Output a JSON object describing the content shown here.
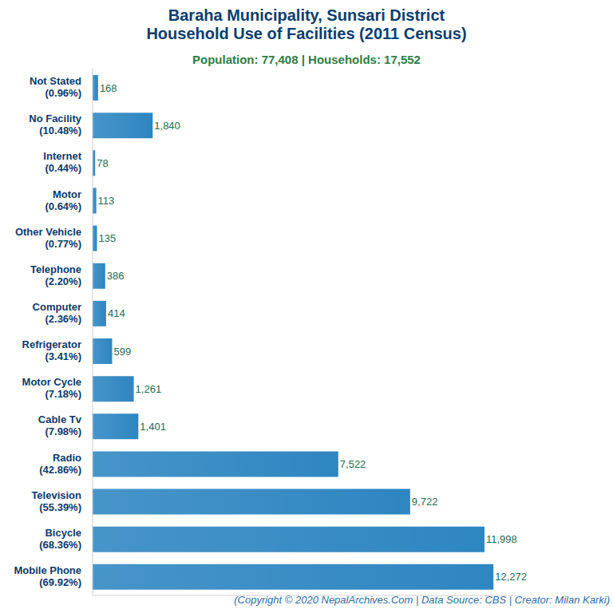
{
  "chart_data": {
    "type": "bar",
    "orientation": "horizontal",
    "title": "Baraha Municipality, Sunsari District\nHousehold Use of Facilities (2011 Census)",
    "subtitle": "Population: 77,408 | Households: 17,552",
    "caption": "(Copyright © 2020 NepalArchives.Com | Data Source: CBS | Creator: Milan Karki)",
    "categories": [
      "Not Stated\n(0.96%)",
      "No Facility\n(10.48%)",
      "Internet\n(0.44%)",
      "Motor\n(0.64%)",
      "Other Vehicle\n(0.77%)",
      "Telephone\n(2.20%)",
      "Computer\n(2.36%)",
      "Refrigerator\n(3.41%)",
      "Motor Cycle\n(7.18%)",
      "Cable Tv\n(7.98%)",
      "Radio\n(42.86%)",
      "Television\n(55.39%)",
      "Bicycle\n(68.36%)",
      "Mobile Phone\n(69.92%)"
    ],
    "values": [
      168,
      1840,
      78,
      113,
      135,
      386,
      414,
      599,
      1261,
      1401,
      7522,
      9722,
      11998,
      12272
    ],
    "value_labels": [
      "168",
      "1,840",
      "78",
      "113",
      "135",
      "386",
      "414",
      "599",
      "1,261",
      "1,401",
      "7,522",
      "9,722",
      "11,998",
      "12,272"
    ],
    "data_labels": true,
    "color": "#2e86c1",
    "xlim": [
      0,
      13000
    ],
    "tick_labels": false,
    "grid": false
  }
}
